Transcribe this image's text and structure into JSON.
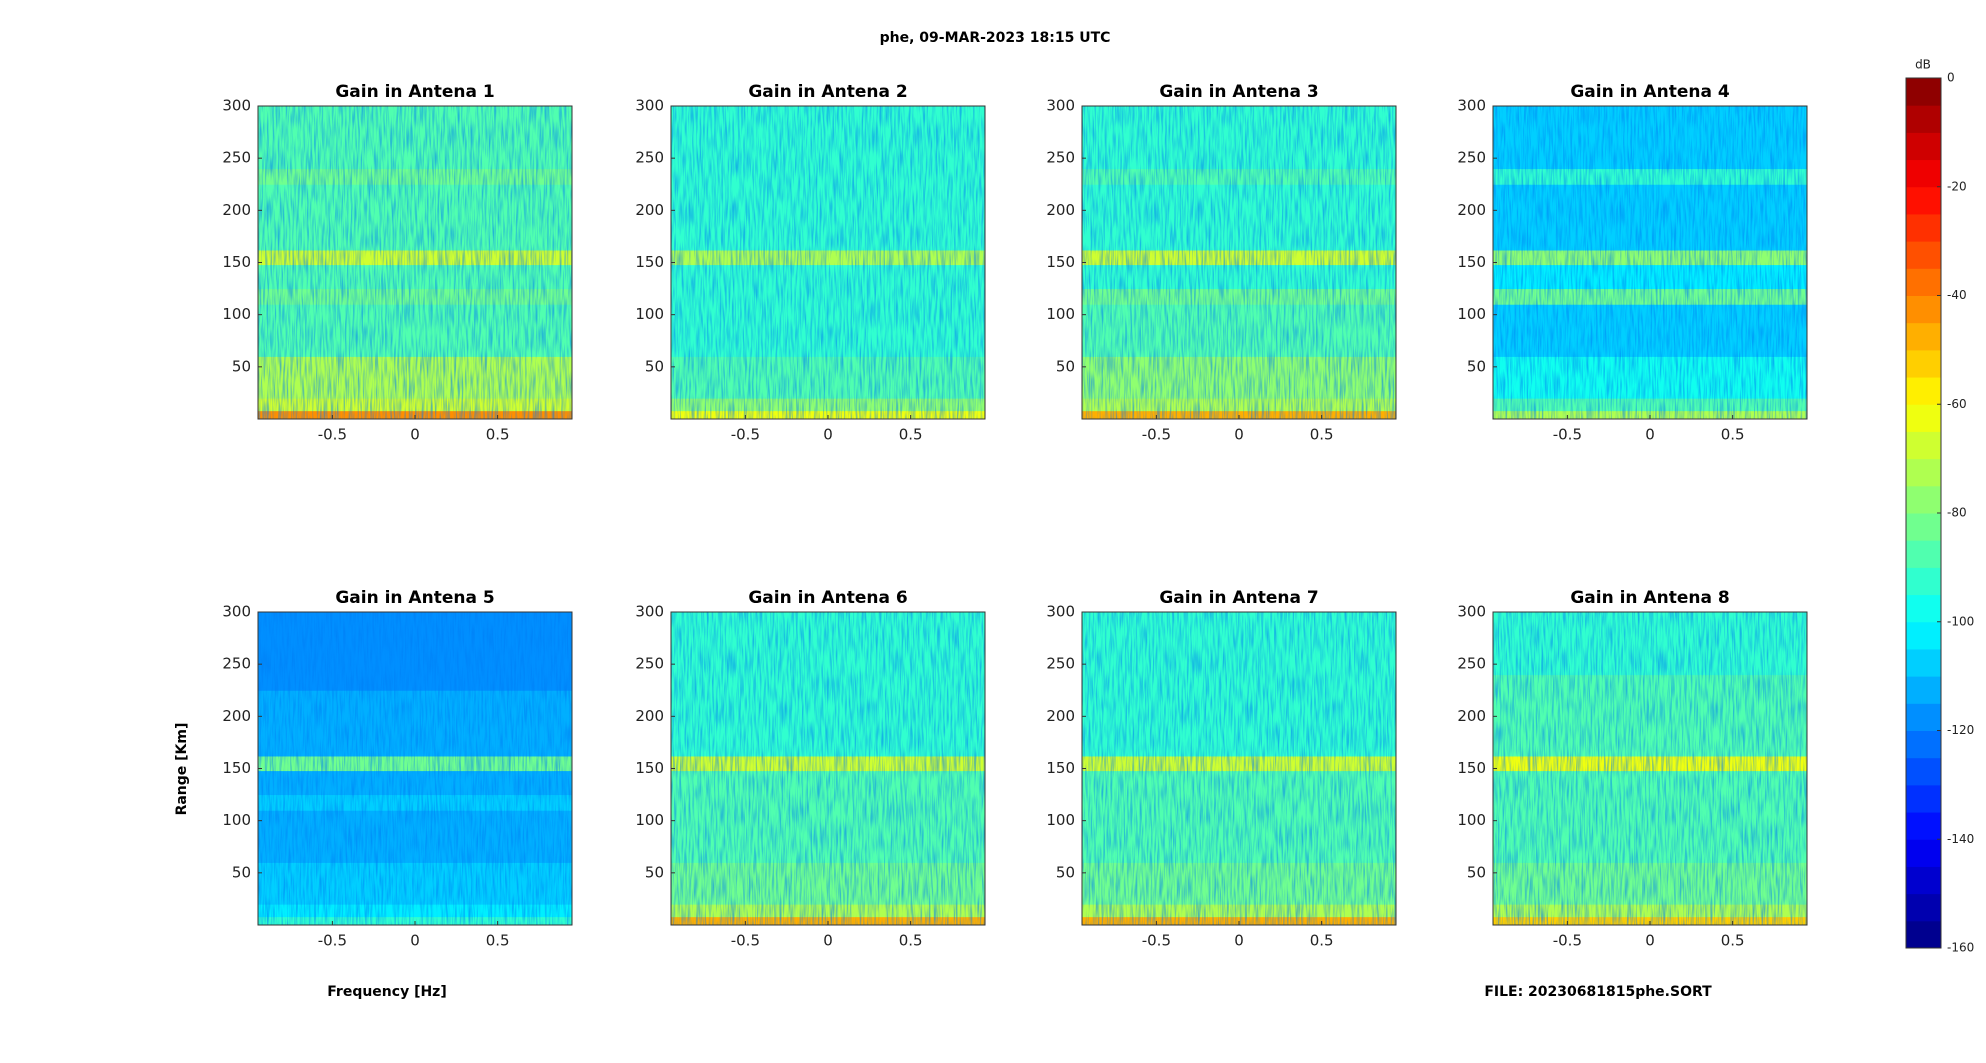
{
  "figure": {
    "title": "phe, 09-MAR-2023 18:15 UTC",
    "xlabel": "Frequency [Hz]",
    "ylabel": "Range [Km]",
    "file": "FILE: 20230681815phe.SORT",
    "colorbar": {
      "label": "dB",
      "clim": [
        -160,
        0
      ],
      "ticks": [
        0,
        -20,
        -40,
        -60,
        -80,
        -100,
        -120,
        -140,
        -160
      ],
      "levels": 32,
      "colormap": "jet"
    }
  },
  "chart_data": [
    {
      "type": "heatmap",
      "title": "Gain in Antena 1",
      "xlim": [
        -0.95,
        0.95
      ],
      "xticks": [
        -0.5,
        0,
        0.5
      ],
      "ylim": [
        0,
        300
      ],
      "yticks": [
        50,
        100,
        150,
        200,
        250,
        300
      ],
      "y_bins": [
        0,
        8,
        20,
        60,
        110,
        125,
        148,
        162,
        225,
        240,
        300
      ],
      "values": [
        -45,
        -68,
        -75,
        -88,
        -82,
        -90,
        -70,
        -90,
        -85,
        -90
      ]
    },
    {
      "type": "heatmap",
      "title": "Gain in Antena 2",
      "xlim": [
        -0.95,
        0.95
      ],
      "xticks": [
        -0.5,
        0,
        0.5
      ],
      "ylim": [
        0,
        300
      ],
      "yticks": [
        50,
        100,
        150,
        200,
        250,
        300
      ],
      "y_bins": [
        0,
        8,
        20,
        60,
        110,
        125,
        148,
        162,
        225,
        240,
        300
      ],
      "values": [
        -62,
        -80,
        -88,
        -95,
        -92,
        -95,
        -72,
        -95,
        -95,
        -95
      ]
    },
    {
      "type": "heatmap",
      "title": "Gain in Antena 3",
      "xlim": [
        -0.95,
        0.95
      ],
      "xticks": [
        -0.5,
        0,
        0.5
      ],
      "ylim": [
        0,
        300
      ],
      "yticks": [
        50,
        100,
        150,
        200,
        250,
        300
      ],
      "y_bins": [
        0,
        8,
        20,
        60,
        110,
        125,
        148,
        162,
        225,
        240,
        300
      ],
      "values": [
        -50,
        -72,
        -80,
        -90,
        -85,
        -92,
        -70,
        -92,
        -90,
        -95
      ]
    },
    {
      "type": "heatmap",
      "title": "Gain in Antena 4",
      "xlim": [
        -0.95,
        0.95
      ],
      "xticks": [
        -0.5,
        0,
        0.5
      ],
      "ylim": [
        0,
        300
      ],
      "yticks": [
        50,
        100,
        150,
        200,
        250,
        300
      ],
      "y_bins": [
        0,
        8,
        20,
        60,
        110,
        125,
        148,
        162,
        225,
        240,
        300
      ],
      "values": [
        -75,
        -90,
        -100,
        -108,
        -85,
        -105,
        -80,
        -110,
        -95,
        -110
      ]
    },
    {
      "type": "heatmap",
      "title": "Gain in Antena 5",
      "xlim": [
        -0.95,
        0.95
      ],
      "xticks": [
        -0.5,
        0,
        0.5
      ],
      "ylim": [
        0,
        300
      ],
      "yticks": [
        50,
        100,
        150,
        200,
        250,
        300
      ],
      "y_bins": [
        0,
        8,
        20,
        60,
        110,
        125,
        148,
        162,
        225,
        240,
        300
      ],
      "values": [
        -95,
        -105,
        -110,
        -112,
        -108,
        -112,
        -85,
        -115,
        -118,
        -120
      ]
    },
    {
      "type": "heatmap",
      "title": "Gain in Antena 6",
      "xlim": [
        -0.95,
        0.95
      ],
      "xticks": [
        -0.5,
        0,
        0.5
      ],
      "ylim": [
        0,
        300
      ],
      "yticks": [
        50,
        100,
        150,
        200,
        250,
        300
      ],
      "y_bins": [
        0,
        8,
        20,
        60,
        110,
        125,
        148,
        162,
        225,
        240,
        300
      ],
      "values": [
        -50,
        -72,
        -82,
        -88,
        -86,
        -90,
        -68,
        -92,
        -92,
        -95
      ]
    },
    {
      "type": "heatmap",
      "title": "Gain in Antena 7",
      "xlim": [
        -0.95,
        0.95
      ],
      "xticks": [
        -0.5,
        0,
        0.5
      ],
      "ylim": [
        0,
        300
      ],
      "yticks": [
        50,
        100,
        150,
        200,
        250,
        300
      ],
      "y_bins": [
        0,
        8,
        20,
        60,
        110,
        125,
        148,
        162,
        225,
        240,
        300
      ],
      "values": [
        -50,
        -72,
        -82,
        -88,
        -86,
        -90,
        -68,
        -92,
        -92,
        -95
      ]
    },
    {
      "type": "heatmap",
      "title": "Gain in Antena 8",
      "xlim": [
        -0.95,
        0.95
      ],
      "xticks": [
        -0.5,
        0,
        0.5
      ],
      "ylim": [
        0,
        300
      ],
      "yticks": [
        50,
        100,
        150,
        200,
        250,
        300
      ],
      "y_bins": [
        0,
        8,
        20,
        60,
        110,
        125,
        148,
        162,
        225,
        240,
        300
      ],
      "values": [
        -52,
        -74,
        -82,
        -88,
        -86,
        -90,
        -65,
        -90,
        -90,
        -92
      ]
    }
  ]
}
